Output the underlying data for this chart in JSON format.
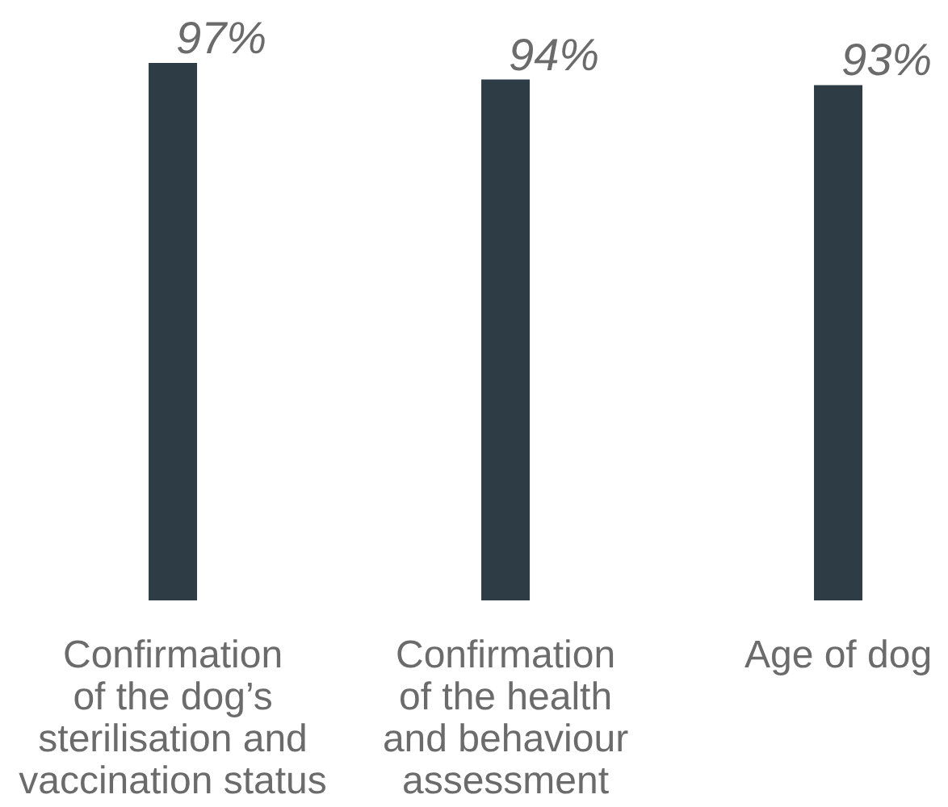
{
  "chart_data": {
    "type": "bar",
    "categories": [
      "Confirmation\nof the dog’s\nsterilisation and\nvaccination status",
      "Confirmation\nof the health\nand behaviour\nassessment",
      "Age of dog"
    ],
    "values": [
      97,
      94,
      93
    ],
    "color": "#2e3d45",
    "value_labels": [
      "97%",
      "94%",
      "93%"
    ]
  }
}
